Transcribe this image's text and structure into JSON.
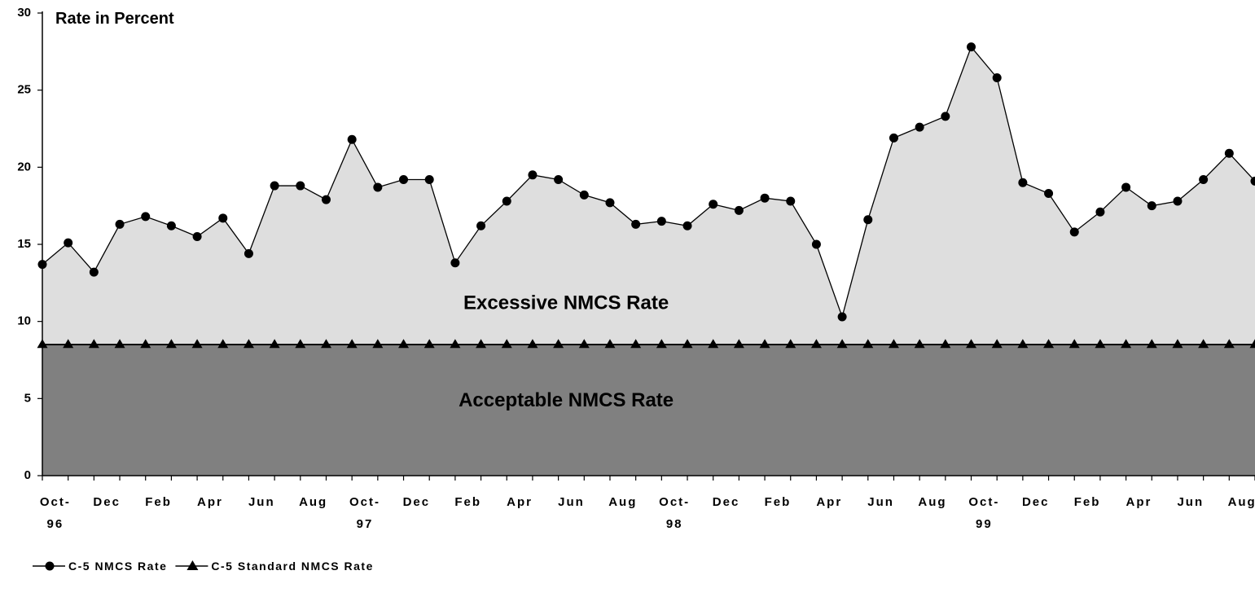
{
  "chart_data": {
    "type": "area",
    "title": "Rate in Percent",
    "ylim": [
      0,
      30
    ],
    "yticks": [
      0,
      5,
      10,
      15,
      20,
      25,
      30
    ],
    "grid": false,
    "legend_placement": "bottom-left",
    "x_tick_labels": [
      {
        "index": 0,
        "lines": [
          "Oct-",
          "96"
        ]
      },
      {
        "index": 2,
        "lines": [
          "Dec"
        ]
      },
      {
        "index": 4,
        "lines": [
          "Feb"
        ]
      },
      {
        "index": 6,
        "lines": [
          "Apr"
        ]
      },
      {
        "index": 8,
        "lines": [
          "Jun"
        ]
      },
      {
        "index": 10,
        "lines": [
          "Aug"
        ]
      },
      {
        "index": 12,
        "lines": [
          "Oct-",
          "97"
        ]
      },
      {
        "index": 14,
        "lines": [
          "Dec"
        ]
      },
      {
        "index": 16,
        "lines": [
          "Feb"
        ]
      },
      {
        "index": 18,
        "lines": [
          "Apr"
        ]
      },
      {
        "index": 20,
        "lines": [
          "Jun"
        ]
      },
      {
        "index": 22,
        "lines": [
          "Aug"
        ]
      },
      {
        "index": 24,
        "lines": [
          "Oct-",
          "98"
        ]
      },
      {
        "index": 26,
        "lines": [
          "Dec"
        ]
      },
      {
        "index": 28,
        "lines": [
          "Feb"
        ]
      },
      {
        "index": 30,
        "lines": [
          "Apr"
        ]
      },
      {
        "index": 32,
        "lines": [
          "Jun"
        ]
      },
      {
        "index": 34,
        "lines": [
          "Aug"
        ]
      },
      {
        "index": 36,
        "lines": [
          "Oct-",
          "99"
        ]
      },
      {
        "index": 38,
        "lines": [
          "Dec"
        ]
      },
      {
        "index": 40,
        "lines": [
          "Feb"
        ]
      },
      {
        "index": 42,
        "lines": [
          "Apr"
        ]
      },
      {
        "index": 44,
        "lines": [
          "Jun"
        ]
      },
      {
        "index": 46,
        "lines": [
          "Aug"
        ]
      }
    ],
    "series": [
      {
        "name": "C-5 NMCS Rate",
        "marker": "circle",
        "fill_color": "#dedede",
        "values": [
          13.7,
          15.1,
          13.2,
          16.3,
          16.8,
          16.2,
          15.5,
          16.7,
          14.4,
          18.8,
          18.8,
          17.9,
          21.8,
          18.7,
          19.2,
          19.2,
          13.8,
          16.2,
          17.8,
          19.5,
          19.2,
          18.2,
          17.7,
          16.3,
          16.5,
          16.2,
          17.6,
          17.2,
          18.0,
          17.8,
          15.0,
          10.3,
          16.6,
          21.9,
          22.6,
          23.3,
          27.8,
          25.8,
          19.0,
          18.3,
          15.8,
          17.1,
          18.7,
          17.5,
          17.8,
          19.2,
          20.9,
          19.1
        ]
      },
      {
        "name": "C-5 Standard NMCS Rate",
        "marker": "triangle",
        "fill_color": "#808080",
        "values": [
          8.5,
          8.5,
          8.5,
          8.5,
          8.5,
          8.5,
          8.5,
          8.5,
          8.5,
          8.5,
          8.5,
          8.5,
          8.5,
          8.5,
          8.5,
          8.5,
          8.5,
          8.5,
          8.5,
          8.5,
          8.5,
          8.5,
          8.5,
          8.5,
          8.5,
          8.5,
          8.5,
          8.5,
          8.5,
          8.5,
          8.5,
          8.5,
          8.5,
          8.5,
          8.5,
          8.5,
          8.5,
          8.5,
          8.5,
          8.5,
          8.5,
          8.5,
          8.5,
          8.5,
          8.5,
          8.5,
          8.5,
          8.5
        ]
      }
    ],
    "annotations": [
      {
        "text": "Excessive NMCS Rate",
        "x_index": 20.3,
        "y": 10.8
      },
      {
        "text": "Acceptable NMCS Rate",
        "x_index": 20.3,
        "y": 4.5
      }
    ]
  }
}
